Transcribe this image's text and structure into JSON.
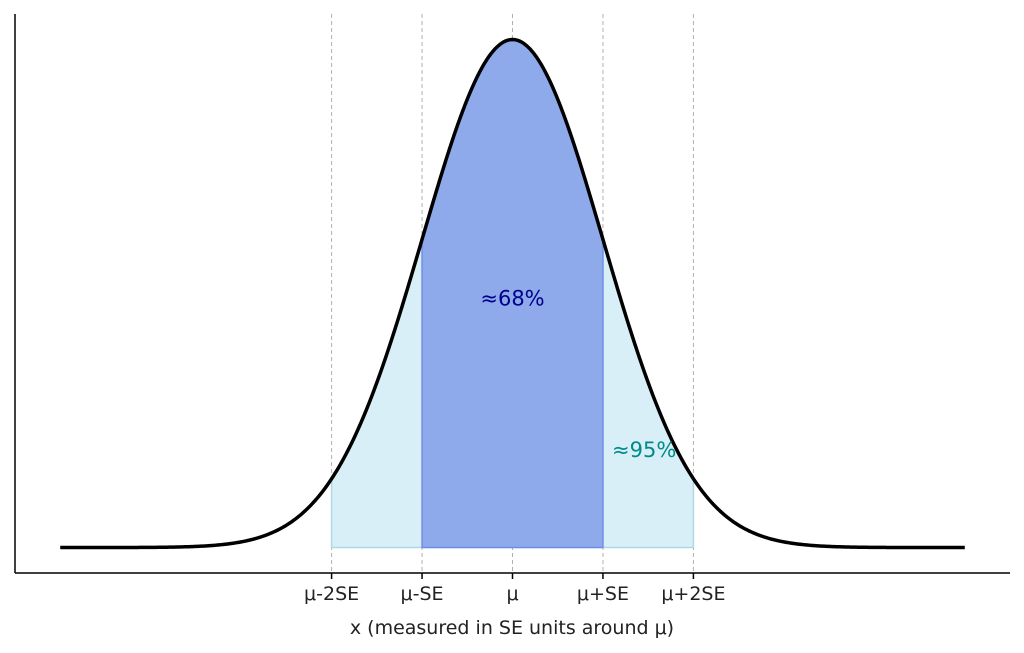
{
  "chart_data": {
    "type": "area",
    "title": "",
    "xlabel": "x (measured in SE units around μ)",
    "ylabel": "",
    "xlim": [
      -5.5,
      5.5
    ],
    "ylim": [
      -0.02,
      0.419
    ],
    "curve": {
      "name": "normal pdf",
      "mean": 0,
      "sd": 1,
      "x_range": [
        -5,
        5
      ],
      "color": "#000000"
    },
    "x_ticks": [
      {
        "value": -2,
        "label": "μ-2SE"
      },
      {
        "value": -1,
        "label": "μ-SE"
      },
      {
        "value": 0,
        "label": "μ"
      },
      {
        "value": 1,
        "label": "μ+SE"
      },
      {
        "value": 2,
        "label": "μ+2SE"
      }
    ],
    "grid": "vertical dashed at ticks",
    "regions": [
      {
        "name": "95% region",
        "from": -2,
        "to": 2,
        "color": "#d9eff7",
        "edge": "#add8e6"
      },
      {
        "name": "68% region",
        "from": -1,
        "to": 1,
        "color": "#8eaaea",
        "edge": "#6f8fe6"
      }
    ],
    "annotations": [
      {
        "text": "≈68%",
        "x": 0,
        "y": 0.19,
        "color": "#00008b"
      },
      {
        "text": "≈95%",
        "x": 1.1,
        "y": 0.071,
        "color": "#008b8b"
      }
    ]
  }
}
